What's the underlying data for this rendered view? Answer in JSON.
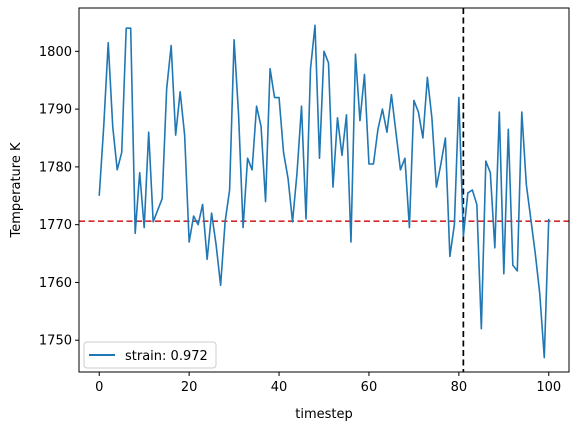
{
  "chart_data": {
    "type": "line",
    "title": "",
    "xlabel": "timestep",
    "ylabel": "Temperature K",
    "xlim": [
      -4.5,
      104.5
    ],
    "ylim": [
      1744.5,
      1807.5
    ],
    "xticks": [
      0,
      20,
      40,
      60,
      80,
      100
    ],
    "yticks": [
      1750,
      1760,
      1770,
      1780,
      1790,
      1800
    ],
    "grid": false,
    "legend_position": "lower-left",
    "series": [
      {
        "name": "strain: 0.972",
        "color": "#1f77b4",
        "x": [
          0,
          1,
          2,
          3,
          4,
          5,
          6,
          7,
          8,
          9,
          10,
          11,
          12,
          13,
          14,
          15,
          16,
          17,
          18,
          19,
          20,
          21,
          22,
          23,
          24,
          25,
          26,
          27,
          28,
          29,
          30,
          31,
          32,
          33,
          34,
          35,
          36,
          37,
          38,
          39,
          40,
          41,
          42,
          43,
          44,
          45,
          46,
          47,
          48,
          49,
          50,
          51,
          52,
          53,
          54,
          55,
          56,
          57,
          58,
          59,
          60,
          61,
          62,
          63,
          64,
          65,
          66,
          67,
          68,
          69,
          70,
          71,
          72,
          73,
          74,
          75,
          76,
          77,
          78,
          79,
          80,
          81,
          82,
          83,
          84,
          85,
          86,
          87,
          88,
          89,
          90,
          91,
          92,
          93,
          94,
          95,
          96,
          97,
          98,
          99,
          100
        ],
        "values": [
          1775,
          1787,
          1801.5,
          1787,
          1779.5,
          1782.5,
          1804,
          1804,
          1768.5,
          1779,
          1769.5,
          1786,
          1770.5,
          1772.5,
          1774.5,
          1793.5,
          1801,
          1785.5,
          1793,
          1785.5,
          1767,
          1771.5,
          1770,
          1773.5,
          1764,
          1772,
          1766.5,
          1759.5,
          1770.5,
          1776,
          1802,
          1789,
          1769.5,
          1781.5,
          1779.5,
          1790.5,
          1787,
          1774,
          1797,
          1792,
          1792,
          1782.5,
          1778,
          1770.5,
          1779,
          1790.5,
          1771,
          1797,
          1804.5,
          1781.5,
          1800,
          1798,
          1776.5,
          1788.5,
          1782,
          1789,
          1767,
          1799.5,
          1788,
          1796,
          1780.5,
          1780.5,
          1786.5,
          1790,
          1786,
          1792.5,
          1786,
          1779.5,
          1781.5,
          1769.5,
          1791.5,
          1789.5,
          1785,
          1795.5,
          1788.5,
          1776.5,
          1780.5,
          1785,
          1764.5,
          1770,
          1792,
          1768,
          1775.5,
          1776,
          1773.5,
          1752,
          1781,
          1779,
          1766,
          1789.5,
          1761.5,
          1786.5,
          1763,
          1762,
          1789.5,
          1777,
          1771,
          1765,
          1758,
          1747,
          1771
        ]
      }
    ],
    "reference_lines": [
      {
        "orientation": "horizontal",
        "value": 1770.6,
        "color": "#d62728",
        "style": "dashed"
      },
      {
        "orientation": "vertical",
        "value": 81,
        "color": "#000000",
        "style": "dashed"
      }
    ]
  }
}
